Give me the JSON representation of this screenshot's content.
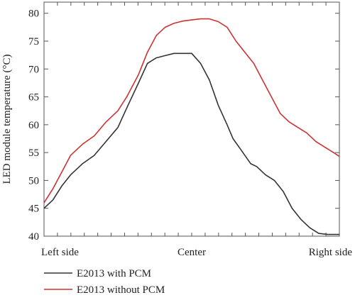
{
  "chart_data": {
    "type": "line",
    "title": "",
    "xlabel": "",
    "ylabel": "LED module temperature (°C)",
    "ylim": [
      40,
      82
    ],
    "yticks": [
      40,
      45,
      50,
      55,
      60,
      65,
      70,
      75,
      80
    ],
    "xlim": [
      0,
      100
    ],
    "xtick_labels": [
      {
        "x": 0,
        "label": "Left side"
      },
      {
        "x": 50,
        "label": "Center"
      },
      {
        "x": 100,
        "label": "Right side"
      }
    ],
    "grid": false,
    "legend_position": "bottom-left",
    "series": [
      {
        "name": "E2013 with PCM",
        "color": "#333333",
        "x": [
          0,
          3,
          6,
          9,
          13,
          17,
          21,
          25,
          28,
          32,
          35,
          38,
          41,
          44,
          47,
          50,
          53,
          56,
          59,
          62,
          64,
          66,
          68,
          70,
          72,
          75,
          78,
          81,
          84,
          87,
          90,
          93,
          96,
          98,
          100
        ],
        "values": [
          45,
          46.5,
          49,
          51,
          53,
          54.5,
          57,
          59.5,
          63,
          67.5,
          71,
          72,
          72.4,
          72.8,
          72.8,
          72.8,
          71,
          68,
          63.5,
          60,
          57.5,
          56,
          54.5,
          53,
          52.5,
          51,
          50,
          48,
          45,
          43,
          41.5,
          40.5,
          40.3,
          40.3,
          40.3
        ]
      },
      {
        "name": "E2013 without PCM",
        "color": "#cc3333",
        "x": [
          0,
          3,
          6,
          9,
          13,
          17,
          21,
          25,
          28,
          32,
          35,
          38,
          41,
          44,
          47,
          50,
          53,
          56,
          59,
          62,
          65,
          68,
          71,
          74,
          77,
          80,
          83,
          86,
          89,
          92,
          95,
          98,
          100
        ],
        "values": [
          46,
          48.5,
          51.5,
          54.5,
          56.5,
          58,
          60.5,
          62.5,
          65,
          69,
          73,
          76,
          77.5,
          78.2,
          78.6,
          78.8,
          79,
          79,
          78.5,
          77.5,
          75,
          73,
          71,
          68,
          65,
          62,
          60.5,
          59.5,
          58.5,
          57,
          56,
          55,
          54.3
        ]
      }
    ]
  }
}
